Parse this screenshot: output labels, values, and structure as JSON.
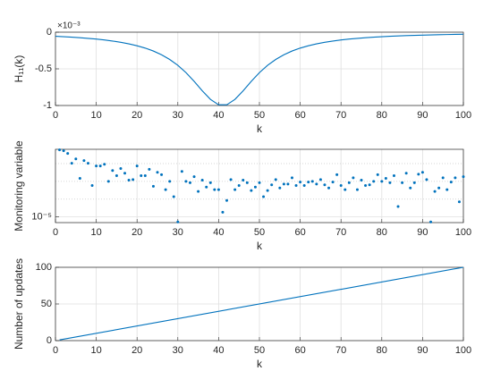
{
  "chart_data": [
    {
      "type": "line",
      "ylabel": "H₁₁(k)",
      "xlabel": "k",
      "y_exponent": "×10⁻³",
      "color": "#0072bd",
      "grid": true,
      "xlim": [
        0,
        100
      ],
      "xticks": [
        0,
        10,
        20,
        30,
        40,
        50,
        60,
        70,
        80,
        90,
        100
      ],
      "ylim": [
        -1,
        0
      ],
      "yticks": [
        -1,
        -0.5,
        0
      ],
      "x": [
        0,
        2,
        4,
        6,
        8,
        10,
        12,
        14,
        16,
        18,
        20,
        22,
        24,
        26,
        28,
        30,
        32,
        34,
        36,
        38,
        40,
        42,
        44,
        46,
        48,
        50,
        52,
        54,
        56,
        58,
        60,
        62,
        64,
        66,
        68,
        70,
        72,
        74,
        76,
        78,
        80,
        82,
        84,
        86,
        88,
        90,
        92,
        94,
        96,
        98,
        100
      ],
      "values": [
        -0.056,
        -0.062,
        -0.068,
        -0.075,
        -0.084,
        -0.094,
        -0.106,
        -0.121,
        -0.138,
        -0.159,
        -0.185,
        -0.217,
        -0.257,
        -0.308,
        -0.372,
        -0.452,
        -0.552,
        -0.671,
        -0.8,
        -0.917,
        -0.99,
        -0.99,
        -0.917,
        -0.8,
        -0.671,
        -0.552,
        -0.452,
        -0.372,
        -0.308,
        -0.257,
        -0.217,
        -0.185,
        -0.159,
        -0.138,
        -0.121,
        -0.106,
        -0.094,
        -0.084,
        -0.075,
        -0.068,
        -0.062,
        -0.056,
        -0.051,
        -0.047,
        -0.043,
        -0.04,
        -0.037,
        -0.034,
        -0.032,
        -0.03,
        -0.028
      ]
    },
    {
      "type": "scatter",
      "ylabel": "Monitoring variable",
      "xlabel": "k",
      "color": "#0072bd",
      "grid": true,
      "yscale": "log",
      "xlim": [
        0,
        100
      ],
      "xticks": [
        0,
        10,
        20,
        30,
        40,
        50,
        60,
        70,
        80,
        90,
        100
      ],
      "ylim": [
        8e-06,
        0.00014
      ],
      "yticks": [
        {
          "value": 1e-05,
          "label": "10⁻⁵"
        }
      ],
      "yminor_grid": [
        2e-05,
        4e-05,
        8e-05
      ],
      "x": [
        1,
        2,
        3,
        4,
        5,
        6,
        7,
        8,
        9,
        10,
        11,
        12,
        13,
        14,
        15,
        16,
        17,
        18,
        19,
        20,
        21,
        22,
        23,
        24,
        25,
        26,
        27,
        28,
        29,
        30,
        31,
        32,
        33,
        34,
        35,
        36,
        37,
        38,
        39,
        40,
        41,
        42,
        43,
        44,
        45,
        46,
        47,
        48,
        49,
        50,
        51,
        52,
        53,
        54,
        55,
        56,
        57,
        58,
        59,
        60,
        61,
        62,
        63,
        64,
        65,
        66,
        67,
        68,
        69,
        70,
        71,
        72,
        73,
        74,
        75,
        76,
        77,
        78,
        79,
        80,
        81,
        82,
        83,
        84,
        85,
        86,
        87,
        88,
        89,
        90,
        91,
        92,
        93,
        94,
        95,
        96,
        97,
        98,
        99,
        100
      ],
      "values": [
        0.000137,
        0.000132,
        0.000119,
        8.1e-05,
        9.6e-05,
        4.5e-05,
        9e-05,
        8.1e-05,
        3.4e-05,
        7.3e-05,
        7.3e-05,
        7.8e-05,
        4e-05,
        6.1e-05,
        5e-05,
        6.6e-05,
        5.5e-05,
        4.2e-05,
        4.3e-05,
        7.3e-05,
        5e-05,
        5e-05,
        6.4e-05,
        3.3e-05,
        5.7e-05,
        5.2e-05,
        2.9e-05,
        4e-05,
        2.2e-05,
        8.2e-06,
        5.9e-05,
        4e-05,
        3.8e-05,
        4.8e-05,
        2.7e-05,
        4.2e-05,
        3.2e-05,
        3.8e-05,
        2.9e-05,
        2.9e-05,
        1.2e-05,
        1.9e-05,
        4.3e-05,
        2.9e-05,
        3.4e-05,
        4.2e-05,
        3.8e-05,
        2.8e-05,
        3.2e-05,
        3.8e-05,
        2.2e-05,
        2.8e-05,
        3.5e-05,
        4.3e-05,
        3.1e-05,
        3.6e-05,
        3.6e-05,
        4.6e-05,
        3.4e-05,
        3.9e-05,
        3.4e-05,
        3.9e-05,
        4e-05,
        3.6e-05,
        4.3e-05,
        3.5e-05,
        3.1e-05,
        3.9e-05,
        5.2e-05,
        3.4e-05,
        2.9e-05,
        3.8e-05,
        4.6e-05,
        2.9e-05,
        4.2e-05,
        3.4e-05,
        3.5e-05,
        4e-05,
        5.2e-05,
        4e-05,
        4.5e-05,
        3.8e-05,
        5e-05,
        1.5e-05,
        3.8e-05,
        5.5e-05,
        3.1e-05,
        3.8e-05,
        5.3e-05,
        5.7e-05,
        4.3e-05,
        8.2e-06,
        2.7e-05,
        3.1e-05,
        4.6e-05,
        2.9e-05,
        3.9e-05,
        4.6e-05,
        1.8e-05,
        4.8e-05
      ]
    },
    {
      "type": "line",
      "ylabel": "Number of updates",
      "xlabel": "k",
      "color": "#0072bd",
      "grid": true,
      "xlim": [
        0,
        100
      ],
      "xticks": [
        0,
        10,
        20,
        30,
        40,
        50,
        60,
        70,
        80,
        90,
        100
      ],
      "ylim": [
        0,
        100
      ],
      "yticks": [
        0,
        50,
        100
      ],
      "x": [
        1,
        100
      ],
      "values": [
        1,
        100
      ]
    }
  ]
}
